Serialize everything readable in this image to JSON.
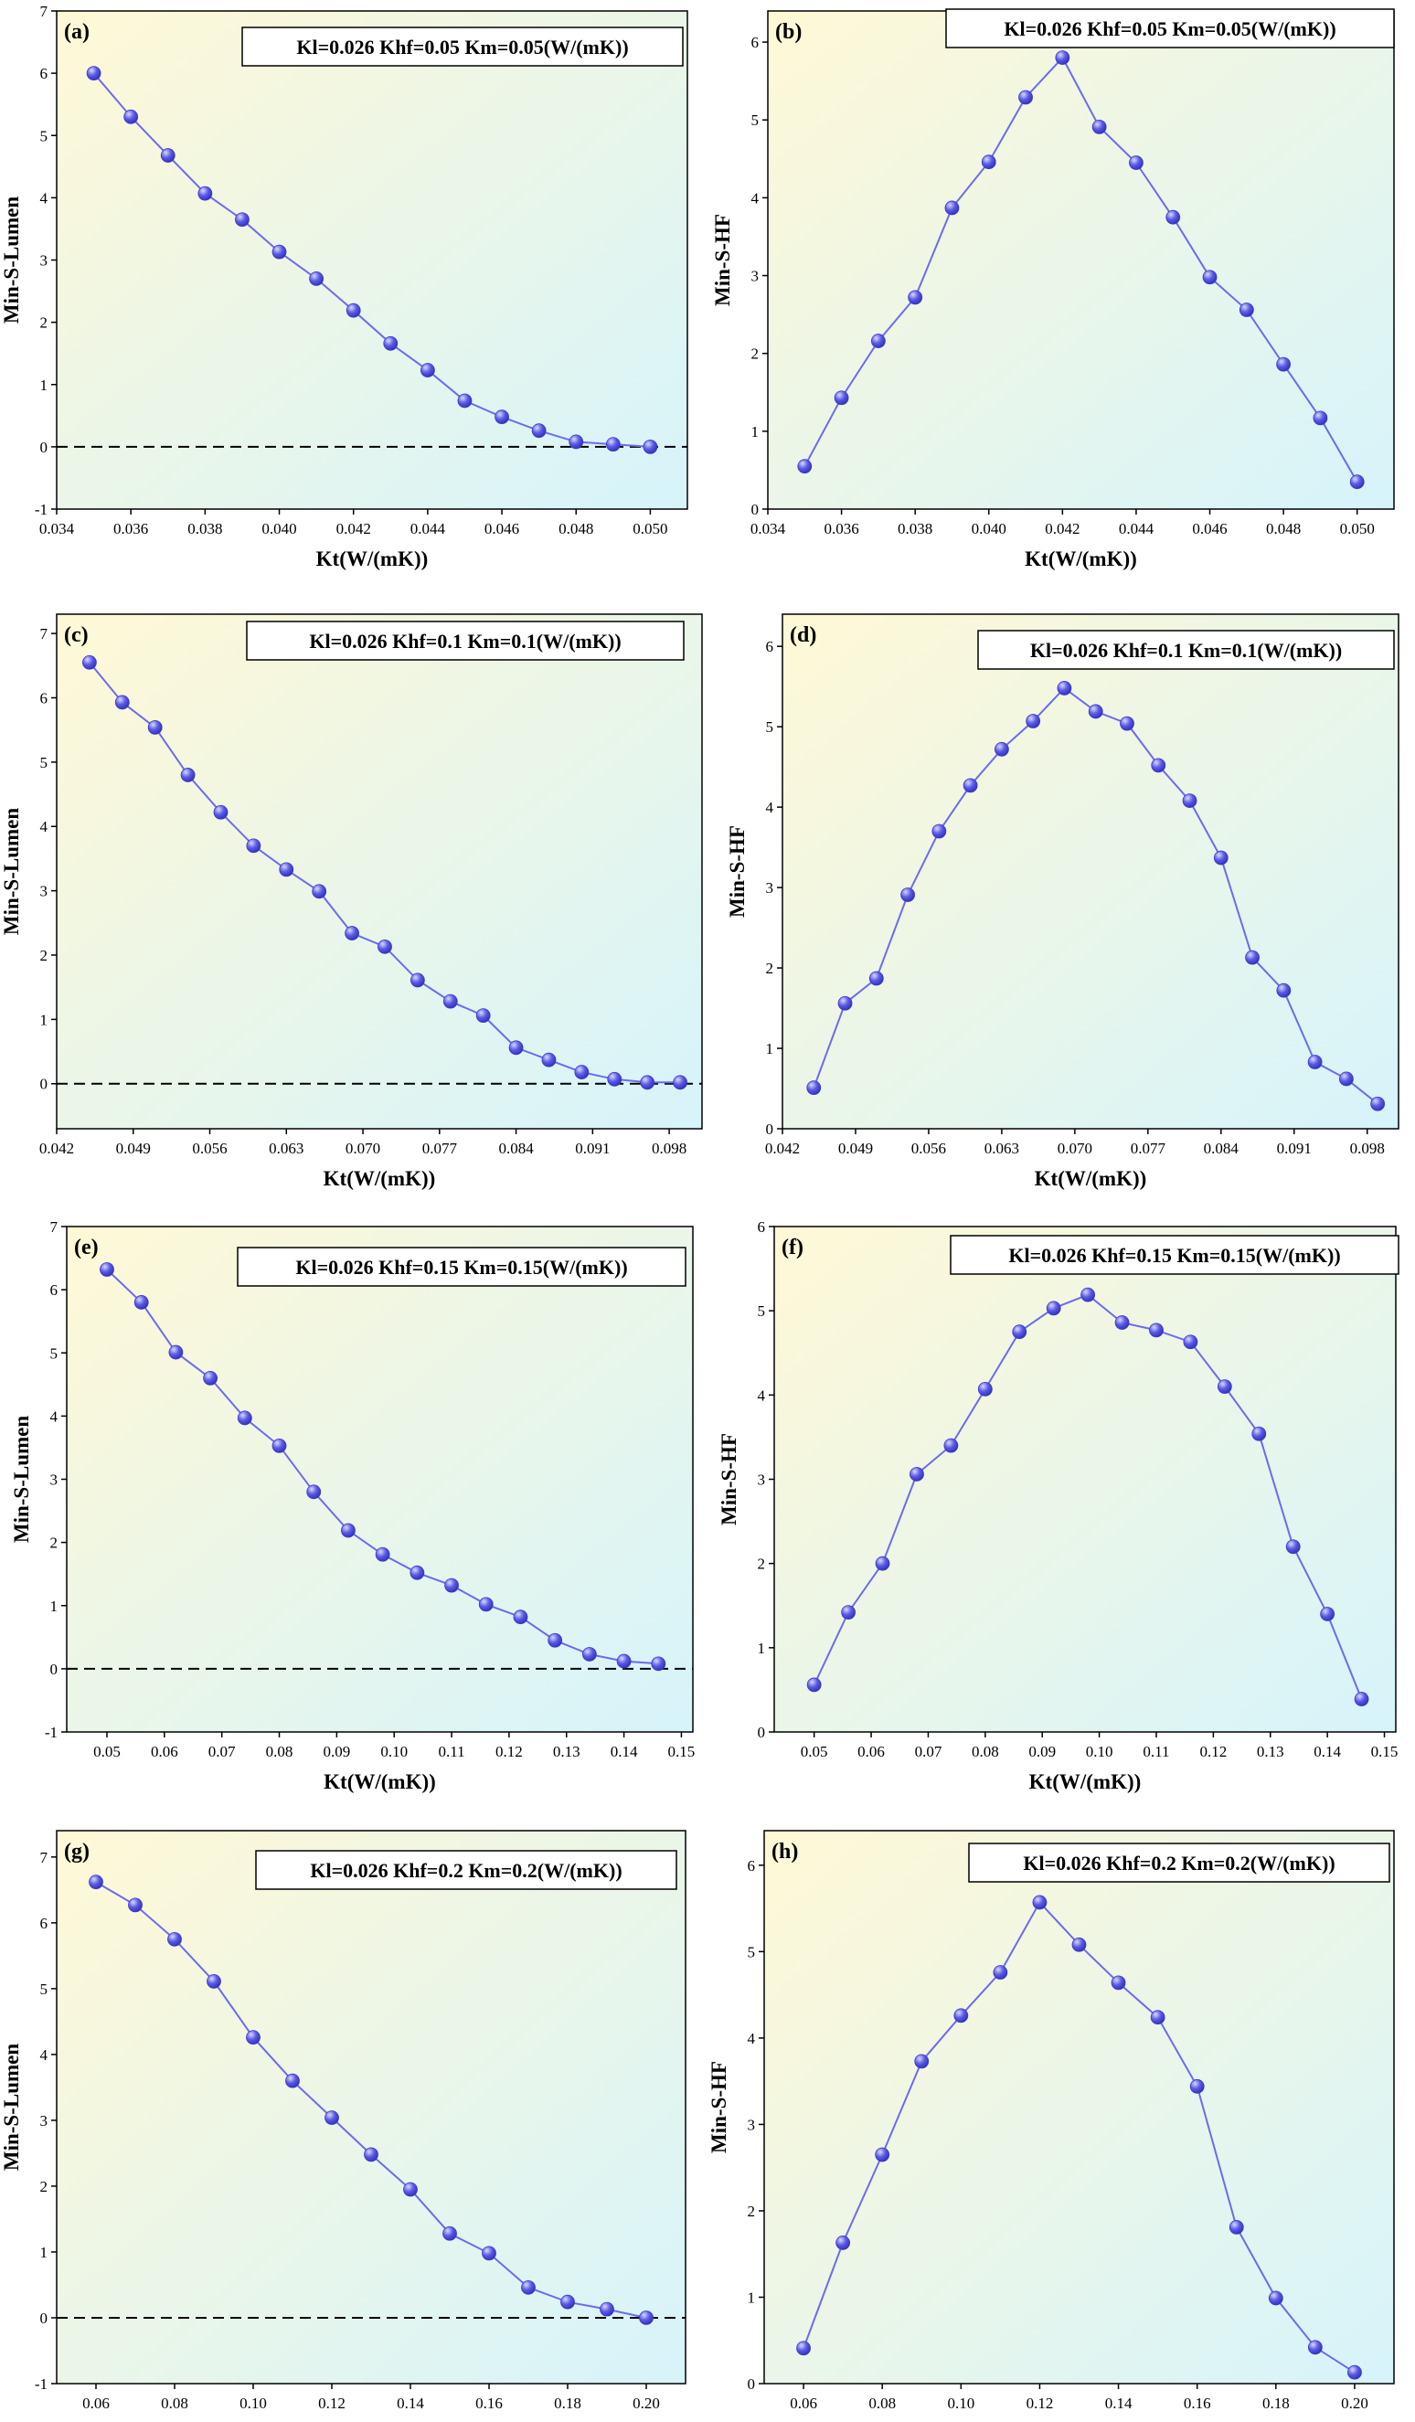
{
  "colors": {
    "line": "#6b6bef",
    "marker": "#5a5ae6",
    "marker_highlight": "#d8d8ff",
    "gradient_top_left": "#fff8d6",
    "gradient_bottom_right": "#d6f4fb",
    "zero_line": "#000000"
  },
  "chart_data": [
    {
      "id": "a",
      "type": "line",
      "panel_label": "(a)",
      "annotation": "Kl=0.026 Khf=0.05 Km=0.05(W/(mK))",
      "xlabel": "Kt(W/(mK))",
      "ylabel": "Min-S-Lumen",
      "xlim": [
        0.034,
        0.051
      ],
      "ylim": [
        -1,
        7
      ],
      "xticks": [
        "0.034",
        "0.036",
        "0.038",
        "0.040",
        "0.042",
        "0.044",
        "0.046",
        "0.048",
        "0.050"
      ],
      "yticks": [
        "-1",
        "0",
        "1",
        "2",
        "3",
        "4",
        "5",
        "6",
        "7"
      ],
      "legend_position": "top-right",
      "zero_line": true,
      "series": [
        {
          "x": [
            0.035,
            0.036,
            0.037,
            0.038,
            0.039,
            0.04,
            0.041,
            0.042,
            0.043,
            0.044,
            0.045,
            0.046,
            0.047,
            0.048,
            0.049,
            0.05
          ],
          "y": [
            6.0,
            5.3,
            4.68,
            4.07,
            3.65,
            3.13,
            2.7,
            2.19,
            1.66,
            1.23,
            0.74,
            0.48,
            0.26,
            0.08,
            0.04,
            0.0
          ]
        }
      ]
    },
    {
      "id": "b",
      "type": "line",
      "panel_label": "(b)",
      "annotation": "Kl=0.026 Khf=0.05 Km=0.05(W/(mK))",
      "xlabel": "Kt(W/(mK))",
      "ylabel": "Min-S-HF",
      "xlim": [
        0.034,
        0.051
      ],
      "ylim": [
        0,
        6.4
      ],
      "xticks": [
        "0.034",
        "0.036",
        "0.038",
        "0.040",
        "0.042",
        "0.044",
        "0.046",
        "0.048",
        "0.050"
      ],
      "yticks": [
        "0",
        "1",
        "2",
        "3",
        "4",
        "5",
        "6"
      ],
      "legend_position": "top-right",
      "zero_line": false,
      "series": [
        {
          "x": [
            0.035,
            0.036,
            0.037,
            0.038,
            0.039,
            0.04,
            0.041,
            0.042,
            0.043,
            0.044,
            0.045,
            0.046,
            0.047,
            0.048,
            0.049,
            0.05
          ],
          "y": [
            0.55,
            1.43,
            2.16,
            2.72,
            3.87,
            4.46,
            5.29,
            5.8,
            4.91,
            4.45,
            3.75,
            2.98,
            2.56,
            1.86,
            1.17,
            0.35
          ]
        }
      ]
    },
    {
      "id": "c",
      "type": "line",
      "panel_label": "(c)",
      "annotation": "Kl=0.026 Khf=0.1 Km=0.1(W/(mK))",
      "xlabel": "Kt(W/(mK))",
      "ylabel": "Min-S-Lumen",
      "xlim": [
        0.042,
        0.101
      ],
      "ylim": [
        -0.7,
        7.3
      ],
      "xticks": [
        "0.042",
        "0.049",
        "0.056",
        "0.063",
        "0.070",
        "0.077",
        "0.084",
        "0.091",
        "0.098"
      ],
      "yticks": [
        "0",
        "1",
        "2",
        "3",
        "4",
        "5",
        "6",
        "7"
      ],
      "legend_position": "top-right",
      "zero_line": true,
      "series": [
        {
          "x": [
            0.045,
            0.048,
            0.051,
            0.054,
            0.057,
            0.06,
            0.063,
            0.066,
            0.069,
            0.072,
            0.075,
            0.078,
            0.081,
            0.084,
            0.087,
            0.09,
            0.093,
            0.096,
            0.099
          ],
          "y": [
            6.55,
            5.93,
            5.54,
            4.8,
            4.22,
            3.7,
            3.33,
            2.99,
            2.34,
            2.13,
            1.61,
            1.28,
            1.06,
            0.56,
            0.37,
            0.18,
            0.07,
            0.02,
            0.02
          ]
        }
      ]
    },
    {
      "id": "d",
      "type": "line",
      "panel_label": "(d)",
      "annotation": "Kl=0.026 Khf=0.1 Km=0.1(W/(mK))",
      "xlabel": "Kt(W/(mK))",
      "ylabel": "Min-S-HF",
      "xlim": [
        0.042,
        0.101
      ],
      "ylim": [
        0,
        6.4
      ],
      "xticks": [
        "0.042",
        "0.049",
        "0.056",
        "0.063",
        "0.070",
        "0.077",
        "0.084",
        "0.091",
        "0.098"
      ],
      "yticks": [
        "0",
        "1",
        "2",
        "3",
        "4",
        "5",
        "6"
      ],
      "legend_position": "top-right",
      "zero_line": false,
      "series": [
        {
          "x": [
            0.045,
            0.048,
            0.051,
            0.054,
            0.057,
            0.06,
            0.063,
            0.066,
            0.069,
            0.072,
            0.075,
            0.078,
            0.081,
            0.084,
            0.087,
            0.09,
            0.093,
            0.096,
            0.099
          ],
          "y": [
            0.51,
            1.56,
            1.87,
            2.91,
            3.7,
            4.27,
            4.72,
            5.07,
            5.48,
            5.19,
            5.04,
            4.52,
            4.08,
            3.37,
            2.13,
            1.72,
            0.83,
            0.62,
            0.31
          ]
        }
      ]
    },
    {
      "id": "e",
      "type": "line",
      "panel_label": "(e)",
      "annotation": "Kl=0.026 Khf=0.15 Km=0.15(W/(mK))",
      "xlabel": "Kt(W/(mK))",
      "ylabel": "Min-S-Lumen",
      "xlim": [
        0.043,
        0.152
      ],
      "ylim": [
        -1,
        7
      ],
      "xticks": [
        "0.05",
        "0.06",
        "0.07",
        "0.08",
        "0.09",
        "0.10",
        "0.11",
        "0.12",
        "0.13",
        "0.14",
        "0.15"
      ],
      "yticks": [
        "-1",
        "0",
        "1",
        "2",
        "3",
        "4",
        "5",
        "6",
        "7"
      ],
      "legend_position": "top-right",
      "zero_line": true,
      "series": [
        {
          "x": [
            0.05,
            0.056,
            0.062,
            0.068,
            0.074,
            0.08,
            0.086,
            0.092,
            0.098,
            0.104,
            0.11,
            0.116,
            0.122,
            0.128,
            0.134,
            0.14,
            0.146
          ],
          "y": [
            6.32,
            5.8,
            5.01,
            4.6,
            3.97,
            3.53,
            2.8,
            2.19,
            1.81,
            1.52,
            1.32,
            1.02,
            0.82,
            0.45,
            0.23,
            0.12,
            0.08
          ]
        }
      ]
    },
    {
      "id": "f",
      "type": "line",
      "panel_label": "(f)",
      "annotation": "Kl=0.026 Khf=0.15 Km=0.15(W/(mK))",
      "xlabel": "Kt(W/(mK))",
      "ylabel": "Min-S-HF",
      "xlim": [
        0.043,
        0.152
      ],
      "ylim": [
        0,
        6
      ],
      "xticks": [
        "0.05",
        "0.06",
        "0.07",
        "0.08",
        "0.09",
        "0.10",
        "0.11",
        "0.12",
        "0.13",
        "0.14",
        "0.15"
      ],
      "yticks": [
        "0",
        "1",
        "2",
        "3",
        "4",
        "5",
        "6"
      ],
      "legend_position": "top-right",
      "zero_line": false,
      "series": [
        {
          "x": [
            0.05,
            0.056,
            0.062,
            0.068,
            0.074,
            0.08,
            0.086,
            0.092,
            0.098,
            0.104,
            0.11,
            0.116,
            0.122,
            0.128,
            0.134,
            0.14,
            0.146
          ],
          "y": [
            0.56,
            1.42,
            2.0,
            3.06,
            3.4,
            4.07,
            4.75,
            5.03,
            5.19,
            4.86,
            4.77,
            4.63,
            4.1,
            3.54,
            2.2,
            1.4,
            0.39
          ]
        }
      ]
    },
    {
      "id": "g",
      "type": "line",
      "panel_label": "(g)",
      "annotation": "Kl=0.026 Khf=0.2 Km=0.2(W/(mK))",
      "xlabel": "Kt(W/(mK))",
      "ylabel": "Min-S-Lumen",
      "xlim": [
        0.05,
        0.21
      ],
      "ylim": [
        -1,
        7.4
      ],
      "xticks": [
        "0.06",
        "0.08",
        "0.10",
        "0.12",
        "0.14",
        "0.16",
        "0.18",
        "0.20"
      ],
      "yticks": [
        "-1",
        "0",
        "1",
        "2",
        "3",
        "4",
        "5",
        "6",
        "7"
      ],
      "legend_position": "top-right",
      "zero_line": true,
      "series": [
        {
          "x": [
            0.06,
            0.07,
            0.08,
            0.09,
            0.1,
            0.11,
            0.12,
            0.13,
            0.14,
            0.15,
            0.16,
            0.17,
            0.18,
            0.19,
            0.2
          ],
          "y": [
            6.62,
            6.27,
            5.75,
            5.11,
            4.26,
            3.6,
            3.04,
            2.48,
            1.95,
            1.28,
            0.98,
            0.46,
            0.24,
            0.13,
            0.0
          ]
        }
      ]
    },
    {
      "id": "h",
      "type": "line",
      "panel_label": "(h)",
      "annotation": "Kl=0.026 Khf=0.2 Km=0.2(W/(mK))",
      "xlabel": "Kt(W/(mK))",
      "ylabel": "Min-S-HF",
      "xlim": [
        0.05,
        0.21
      ],
      "ylim": [
        0,
        6.4
      ],
      "xticks": [
        "0.06",
        "0.08",
        "0.10",
        "0.12",
        "0.14",
        "0.16",
        "0.18",
        "0.20"
      ],
      "yticks": [
        "0",
        "1",
        "2",
        "3",
        "4",
        "5",
        "6"
      ],
      "legend_position": "top-right",
      "zero_line": false,
      "series": [
        {
          "x": [
            0.06,
            0.07,
            0.08,
            0.09,
            0.1,
            0.11,
            0.12,
            0.13,
            0.14,
            0.15,
            0.16,
            0.17,
            0.18,
            0.19,
            0.2
          ],
          "y": [
            0.41,
            1.63,
            2.65,
            3.73,
            4.26,
            4.76,
            5.57,
            5.08,
            4.64,
            4.24,
            3.44,
            1.81,
            0.99,
            0.42,
            0.13
          ]
        }
      ]
    }
  ]
}
